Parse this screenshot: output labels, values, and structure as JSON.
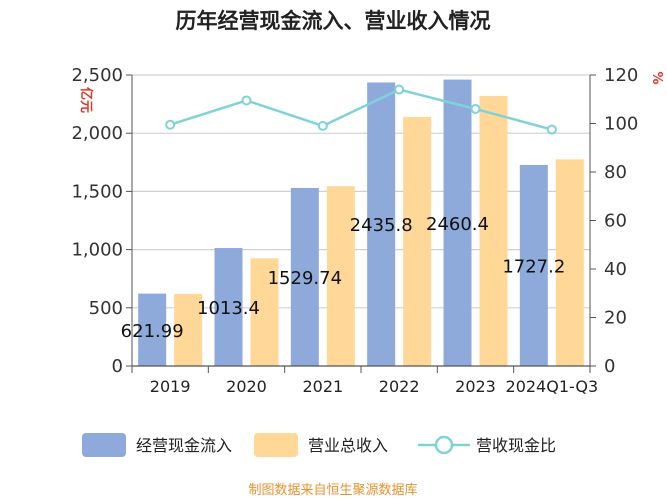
{
  "chart_data": {
    "type": "bar",
    "title": "历年经营现金流入、营业收入情况",
    "categories": [
      "2019",
      "2020",
      "2021",
      "2022",
      "2023",
      "2024Q1-Q3"
    ],
    "series": [
      {
        "name": "经营现金流入",
        "kind": "bar",
        "axis": "left",
        "color": "#8eaadb",
        "values": [
          621.99,
          1013.4,
          1529.74,
          2435.8,
          2460.4,
          1727.2
        ]
      },
      {
        "name": "营业总收入",
        "kind": "bar",
        "axis": "left",
        "color": "#ffd797",
        "values": [
          620,
          925,
          1545,
          2140,
          2320,
          1775
        ]
      },
      {
        "name": "营收现金比",
        "kind": "line",
        "axis": "right",
        "color": "#7fd3d8",
        "values": [
          99.5,
          109.5,
          99,
          114,
          106,
          97.5
        ]
      }
    ],
    "data_labels": [
      "621.99",
      "1013.4",
      "1529.74",
      "2435.8",
      "2460.4",
      "1727.2"
    ],
    "y_left": {
      "unit": "亿元",
      "min": 0,
      "max": 2500,
      "ticks": [
        "0",
        "500",
        "1,000",
        "1,500",
        "2,000",
        "2,500"
      ]
    },
    "y_right": {
      "unit": "%",
      "min": 0,
      "max": 120,
      "ticks": [
        "0",
        "20",
        "40",
        "60",
        "80",
        "100",
        "120"
      ]
    },
    "grid": true,
    "legend_position": "bottom"
  },
  "footer": "制图数据来自恒生聚源数据库"
}
